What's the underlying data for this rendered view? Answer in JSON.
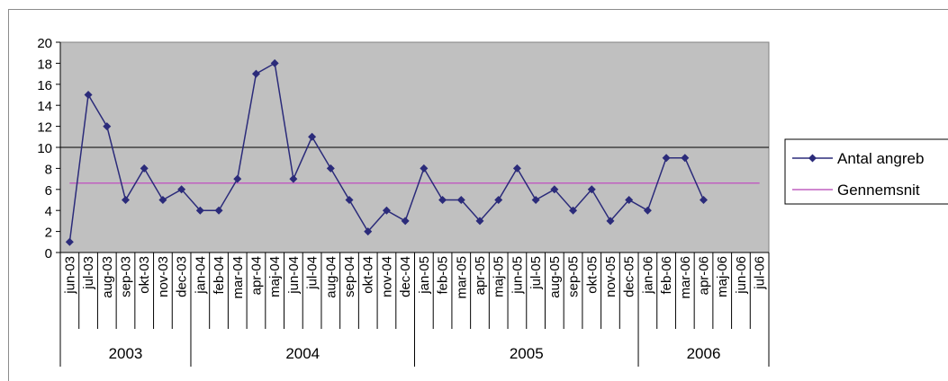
{
  "chart_data": {
    "type": "line",
    "categories": [
      "jun-03",
      "jul-03",
      "aug-03",
      "sep-03",
      "okt-03",
      "nov-03",
      "dec-03",
      "jan-04",
      "feb-04",
      "mar-04",
      "apr-04",
      "maj-04",
      "jun-04",
      "jul-04",
      "aug-04",
      "sep-04",
      "okt-04",
      "nov-04",
      "dec-04",
      "jan-05",
      "feb-05",
      "mar-05",
      "apr-05",
      "maj-05",
      "jun-05",
      "jul-05",
      "aug-05",
      "sep-05",
      "okt-05",
      "nov-05",
      "dec-05",
      "jan-06",
      "feb-06",
      "mar-06",
      "apr-06",
      "maj-06",
      "jun-06",
      "jul-06"
    ],
    "groups": [
      {
        "label": "2003",
        "count": 7
      },
      {
        "label": "2004",
        "count": 12
      },
      {
        "label": "2005",
        "count": 12
      },
      {
        "label": "2006",
        "count": 7
      }
    ],
    "series": [
      {
        "name": "Antal angreb",
        "color": "#2b2b7a",
        "marker": "diamond",
        "values": [
          1,
          15,
          12,
          5,
          8,
          5,
          6,
          4,
          4,
          7,
          17,
          18,
          7,
          11,
          8,
          5,
          2,
          4,
          3,
          8,
          5,
          5,
          3,
          5,
          8,
          5,
          6,
          4,
          6,
          3,
          5,
          4,
          9,
          9,
          5,
          null,
          null,
          null
        ]
      },
      {
        "name": "Gennemsnit",
        "color": "#c060c0",
        "constant": 6.6
      }
    ],
    "ylim": [
      0,
      20
    ],
    "yticks": [
      "0",
      "2",
      "4",
      "6",
      "8",
      "10",
      "12",
      "14",
      "16",
      "18",
      "20"
    ],
    "gridline_at": 10,
    "plot_background": "#c0c0c0",
    "legend_position": "right"
  }
}
